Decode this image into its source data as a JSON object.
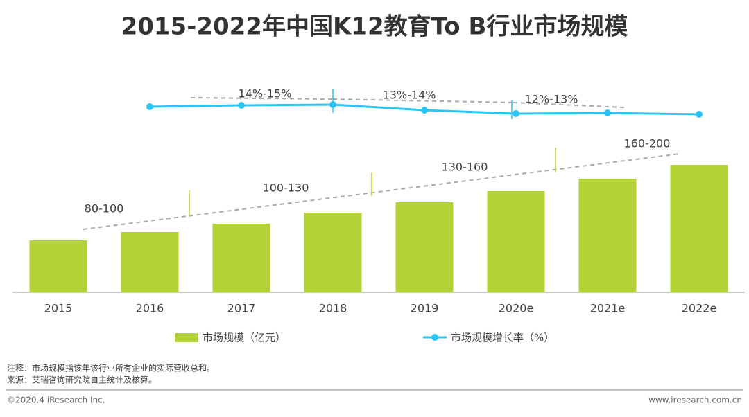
{
  "chart_data": {
    "type": "bar",
    "title": "2015-2022年中国K12教育To B行业市场规模",
    "categories": [
      "2015",
      "2016",
      "2017",
      "2018",
      "2019",
      "2020e",
      "2021e",
      "2022e"
    ],
    "series": [
      {
        "name": "市场规模（亿元）",
        "type": "bar",
        "color": "#b2d235",
        "values": [
          75,
          87,
          99,
          115,
          130,
          146,
          164,
          184
        ]
      },
      {
        "name": "市场规模增长率（%）",
        "type": "line",
        "axis": "y2",
        "color": "#29c5f6",
        "values": [
          null,
          14.6,
          14.8,
          14.9,
          14.1,
          13.6,
          13.7,
          13.5
        ]
      }
    ],
    "ylim": [
      0,
      200
    ],
    "y2lim": [
      10,
      18
    ],
    "annotations": [
      "80-100",
      "100-130",
      "130-160",
      "160-200",
      "14%-15%",
      "13%-14%",
      "12%-13%"
    ],
    "notes": [
      "注释：市场规模指该年该行业所有企业的实际营收总和。",
      "来源：艾瑞咨询研究院自主统计及核算。"
    ],
    "footer_left": "©2020.4 iResearch Inc.",
    "footer_right": "www.iresearch.com.cn"
  }
}
